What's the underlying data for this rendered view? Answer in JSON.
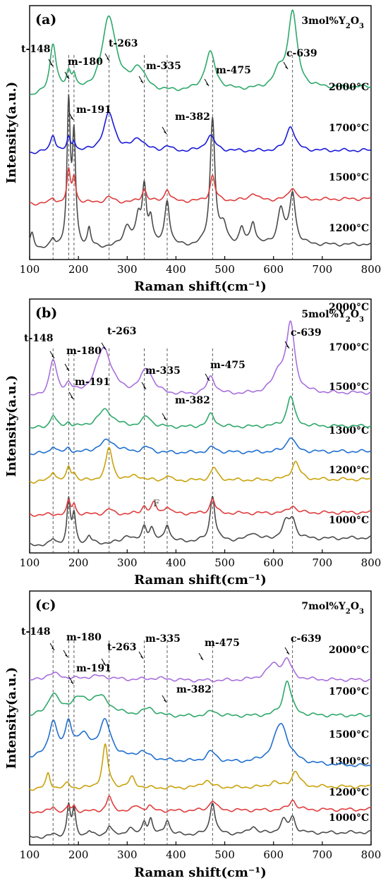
{
  "chart_data": [
    {
      "type": "line",
      "panel": "(a)",
      "composition": "3mol%Y2O3",
      "xlabel": "Raman shift(cm⁻¹)",
      "ylabel": "Intensity(a.u.)",
      "xlim": [
        100,
        800
      ],
      "xticks": [
        "100",
        "200",
        "300",
        "400",
        "500",
        "600",
        "700",
        "800"
      ],
      "grid": false,
      "reference_lines": [
        148,
        180,
        191,
        263,
        335,
        382,
        475,
        639
      ],
      "annotations": [
        {
          "text": "t-148",
          "x": 148
        },
        {
          "text": "m-180",
          "x": 180
        },
        {
          "text": "m-191",
          "x": 191
        },
        {
          "text": "t-263",
          "x": 263
        },
        {
          "text": "m-335",
          "x": 335
        },
        {
          "text": "m-382",
          "x": 382
        },
        {
          "text": "m-475",
          "x": 475
        },
        {
          "text": "c-639",
          "x": 639
        }
      ],
      "series": [
        {
          "name": "1200°C",
          "color": "#4a4a4a",
          "baseline": 0.04,
          "end": 0.06,
          "peaks": [
            [
              105,
              0.06,
              5
            ],
            [
              148,
              0.03,
              5
            ],
            [
              180,
              0.55,
              4
            ],
            [
              191,
              0.42,
              4
            ],
            [
              222,
              0.07,
              4
            ],
            [
              300,
              0.08,
              10
            ],
            [
              323,
              0.1,
              6
            ],
            [
              335,
              0.22,
              5
            ],
            [
              348,
              0.1,
              5
            ],
            [
              382,
              0.18,
              6
            ],
            [
              475,
              0.5,
              6
            ],
            [
              498,
              0.07,
              8
            ],
            [
              535,
              0.06,
              6
            ],
            [
              558,
              0.09,
              6
            ],
            [
              615,
              0.14,
              8
            ],
            [
              639,
              0.2,
              7
            ]
          ]
        },
        {
          "name": "1500°C",
          "color": "#e03c3c",
          "baseline": 0.22,
          "end": 0.24,
          "peaks": [
            [
              148,
              0.02,
              5
            ],
            [
              180,
              0.12,
              4
            ],
            [
              191,
              0.1,
              4
            ],
            [
              263,
              0.02,
              10
            ],
            [
              335,
              0.05,
              6
            ],
            [
              382,
              0.05,
              6
            ],
            [
              475,
              0.1,
              6
            ],
            [
              558,
              0.03,
              8
            ],
            [
              639,
              0.05,
              8
            ]
          ]
        },
        {
          "name": "1700°C",
          "color": "#1a1ad8",
          "baseline": 0.42,
          "end": 0.43,
          "peaks": [
            [
              148,
              0.07,
              6
            ],
            [
              180,
              0.05,
              4
            ],
            [
              191,
              0.04,
              4
            ],
            [
              263,
              0.15,
              14
            ],
            [
              323,
              0.05,
              14
            ],
            [
              382,
              0.02,
              8
            ],
            [
              470,
              0.06,
              12
            ],
            [
              635,
              0.1,
              10
            ]
          ]
        },
        {
          "name": "2000°C",
          "color": "#2ea86a",
          "baseline": 0.64,
          "end": 0.68,
          "peaks": [
            [
              148,
              0.2,
              8
            ],
            [
              180,
              0.07,
              6
            ],
            [
              191,
              0.06,
              5
            ],
            [
              263,
              0.3,
              18
            ],
            [
              323,
              0.09,
              16
            ],
            [
              470,
              0.15,
              13
            ],
            [
              612,
              0.06,
              14
            ],
            [
              639,
              0.3,
              11
            ]
          ]
        }
      ]
    },
    {
      "type": "line",
      "panel": "(b)",
      "composition": "5mol%Y2O3",
      "xlabel": "Raman shift(cm⁻¹)",
      "ylabel": "Intensity(a.u.)",
      "xlim": [
        100,
        800
      ],
      "xticks": [
        "100",
        "200",
        "300",
        "400",
        "500",
        "600",
        "700",
        "800"
      ],
      "grid": false,
      "reference_lines": [
        148,
        180,
        191,
        263,
        335,
        382,
        475,
        639
      ],
      "annotations": [
        {
          "text": "t-148",
          "x": 148
        },
        {
          "text": "m-180",
          "x": 180
        },
        {
          "text": "m-191",
          "x": 191
        },
        {
          "text": "t-263",
          "x": 263
        },
        {
          "text": "m-335",
          "x": 335
        },
        {
          "text": "m-382",
          "x": 382
        },
        {
          "text": "m-475",
          "x": 475
        },
        {
          "text": "c-639",
          "x": 639
        }
      ],
      "extra_labels": [
        {
          "text": "F",
          "x": 362
        }
      ],
      "series": [
        {
          "name": "1000°C",
          "color": "#4a4a4a",
          "baseline": 0.03,
          "end": 0.06,
          "peaks": [
            [
              148,
              0.02,
              5
            ],
            [
              180,
              0.17,
              4
            ],
            [
              191,
              0.11,
              4
            ],
            [
              222,
              0.03,
              5
            ],
            [
              300,
              0.03,
              10
            ],
            [
              335,
              0.06,
              6
            ],
            [
              350,
              0.05,
              6
            ],
            [
              382,
              0.07,
              6
            ],
            [
              475,
              0.18,
              6
            ],
            [
              558,
              0.03,
              10
            ],
            [
              625,
              0.06,
              10
            ],
            [
              639,
              0.07,
              8
            ]
          ]
        },
        {
          "name": "1200°C",
          "color": "#e03c3c",
          "baseline": 0.15,
          "end": 0.16,
          "peaks": [
            [
              180,
              0.05,
              4
            ],
            [
              191,
              0.04,
              4
            ],
            [
              263,
              0.02,
              8
            ],
            [
              335,
              0.03,
              6
            ],
            [
              355,
              0.04,
              6
            ],
            [
              382,
              0.03,
              6
            ],
            [
              475,
              0.06,
              6
            ],
            [
              639,
              0.03,
              8
            ]
          ]
        },
        {
          "name": "1300°C",
          "color": "#c9a20a",
          "baseline": 0.28,
          "end": 0.29,
          "peaks": [
            [
              148,
              0.04,
              6
            ],
            [
              180,
              0.05,
              5
            ],
            [
              191,
              0.03,
              5
            ],
            [
              263,
              0.13,
              8
            ],
            [
              318,
              0.02,
              14
            ],
            [
              382,
              0.02,
              6
            ],
            [
              478,
              0.05,
              8
            ],
            [
              645,
              0.07,
              10
            ]
          ]
        },
        {
          "name": "1500°C",
          "color": "#1f6fcf",
          "baseline": 0.39,
          "end": 0.4,
          "peaks": [
            [
              148,
              0.03,
              6
            ],
            [
              180,
              0.02,
              6
            ],
            [
              260,
              0.05,
              22
            ],
            [
              340,
              0.02,
              12
            ],
            [
              475,
              0.02,
              10
            ],
            [
              635,
              0.06,
              10
            ]
          ]
        },
        {
          "name": "1700°C",
          "color": "#2ea86a",
          "baseline": 0.49,
          "end": 0.5,
          "peaks": [
            [
              148,
              0.05,
              7
            ],
            [
              180,
              0.02,
              6
            ],
            [
              255,
              0.07,
              20
            ],
            [
              340,
              0.04,
              12
            ],
            [
              472,
              0.05,
              9
            ],
            [
              635,
              0.12,
              9
            ]
          ]
        },
        {
          "name": "2000°C",
          "color": "#a86ede",
          "baseline": 0.61,
          "end": 0.63,
          "peaks": [
            [
              148,
              0.14,
              9
            ],
            [
              180,
              0.04,
              8
            ],
            [
              252,
              0.19,
              20
            ],
            [
              340,
              0.1,
              16
            ],
            [
              472,
              0.07,
              10
            ],
            [
              612,
              0.08,
              16
            ],
            [
              635,
              0.26,
              10
            ]
          ]
        }
      ]
    },
    {
      "type": "line",
      "panel": "(c)",
      "composition": "7mol%Y2O3",
      "xlabel": "Raman shift(cm⁻¹)",
      "ylabel": "Intensity(a.u.)",
      "xlim": [
        100,
        800
      ],
      "xticks": [
        "100",
        "200",
        "300",
        "400",
        "500",
        "600",
        "700",
        "800"
      ],
      "grid": false,
      "reference_lines": [
        148,
        180,
        191,
        263,
        335,
        382,
        475,
        639
      ],
      "annotations": [
        {
          "text": "t-148",
          "x": 148
        },
        {
          "text": "m-180",
          "x": 180
        },
        {
          "text": "m-191",
          "x": 191
        },
        {
          "text": "t-263",
          "x": 263
        },
        {
          "text": "m-335",
          "x": 335
        },
        {
          "text": "m-382",
          "x": 382
        },
        {
          "text": "m-475",
          "x": 475
        },
        {
          "text": "c-639",
          "x": 639
        }
      ],
      "series": [
        {
          "name": "1000°C",
          "color": "#4a4a4a",
          "baseline": 0.03,
          "end": 0.05,
          "peaks": [
            [
              148,
              0.01,
              5
            ],
            [
              180,
              0.12,
              4
            ],
            [
              191,
              0.1,
              4
            ],
            [
              222,
              0.02,
              5
            ],
            [
              263,
              0.04,
              6
            ],
            [
              305,
              0.03,
              8
            ],
            [
              335,
              0.05,
              5
            ],
            [
              348,
              0.06,
              5
            ],
            [
              382,
              0.06,
              6
            ],
            [
              475,
              0.13,
              6
            ],
            [
              558,
              0.03,
              8
            ],
            [
              620,
              0.05,
              8
            ],
            [
              639,
              0.06,
              7
            ]
          ]
        },
        {
          "name": "1200°C",
          "color": "#e03c3c",
          "baseline": 0.13,
          "end": 0.14,
          "peaks": [
            [
              148,
              0.02,
              5
            ],
            [
              180,
              0.02,
              4
            ],
            [
              191,
              0.02,
              4
            ],
            [
              263,
              0.06,
              6
            ],
            [
              320,
              0.02,
              8
            ],
            [
              345,
              0.02,
              6
            ],
            [
              475,
              0.04,
              8
            ],
            [
              639,
              0.04,
              8
            ]
          ]
        },
        {
          "name": "1300°C",
          "color": "#c9a20a",
          "baseline": 0.22,
          "end": 0.23,
          "peaks": [
            [
              138,
              0.06,
              5
            ],
            [
              178,
              0.02,
              6
            ],
            [
              255,
              0.17,
              7
            ],
            [
              310,
              0.04,
              8
            ],
            [
              462,
              0.03,
              10
            ],
            [
              600,
              0.02,
              10
            ],
            [
              645,
              0.06,
              10
            ]
          ]
        },
        {
          "name": "1500°C",
          "color": "#1f6fcf",
          "baseline": 0.34,
          "end": 0.31,
          "peaks": [
            [
              148,
              0.14,
              10
            ],
            [
              180,
              0.12,
              8
            ],
            [
              210,
              0.08,
              20
            ],
            [
              255,
              0.14,
              15
            ],
            [
              330,
              0.03,
              18
            ],
            [
              472,
              0.04,
              12
            ],
            [
              615,
              0.16,
              18
            ]
          ]
        },
        {
          "name": "1700°C",
          "color": "#2ea86a",
          "baseline": 0.5,
          "end": 0.51,
          "peaks": [
            [
              148,
              0.08,
              14
            ],
            [
              200,
              0.06,
              25
            ],
            [
              245,
              0.07,
              25
            ],
            [
              345,
              0.03,
              15
            ],
            [
              475,
              0.02,
              12
            ],
            [
              628,
              0.14,
              10
            ]
          ]
        },
        {
          "name": "2000°C",
          "color": "#a86ede",
          "baseline": 0.64,
          "end": 0.65,
          "peaks": [
            [
              148,
              0.03,
              25
            ],
            [
              240,
              0.02,
              40
            ],
            [
              360,
              0.01,
              40
            ],
            [
              600,
              0.06,
              18
            ],
            [
              628,
              0.07,
              10
            ]
          ]
        }
      ]
    }
  ]
}
